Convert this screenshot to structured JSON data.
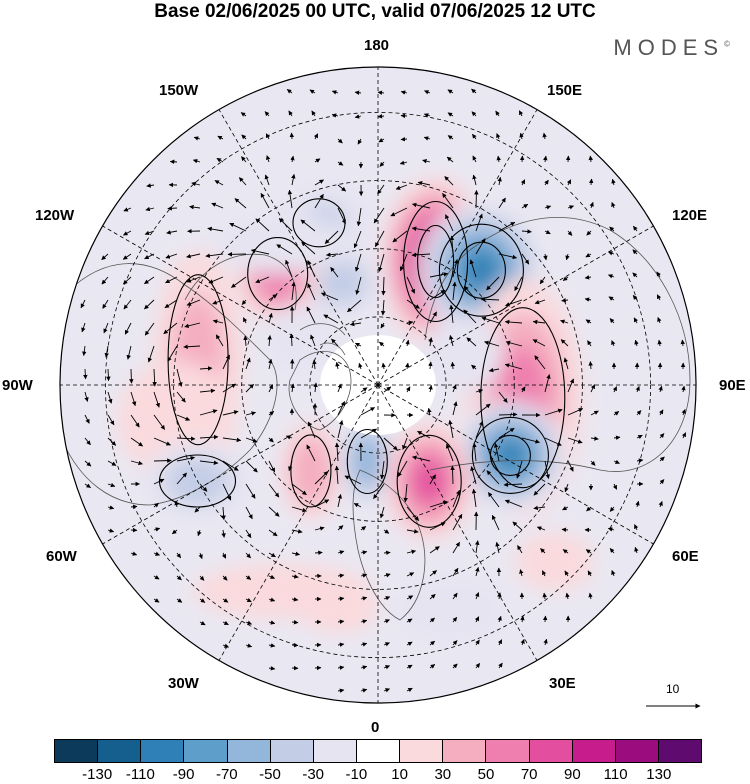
{
  "title": "Base 02/06/2025 00 UTC, valid 07/06/2025 12 UTC",
  "brand": {
    "name": "MODES",
    "mark": "©"
  },
  "longitude_labels": {
    "top": "180",
    "bottom": "0",
    "left": "90W",
    "right": "90E",
    "upper_left_1": "150W",
    "upper_left_2": "120W",
    "lower_left_1": "60W",
    "lower_left_2": "30W",
    "upper_right_1": "150E",
    "upper_right_2": "120E",
    "lower_right_1": "60E",
    "lower_right_2": "30E"
  },
  "reference_vector": {
    "label": "10"
  },
  "colorbar": {
    "colors": [
      "#0b3a5b",
      "#155f8f",
      "#2f80b6",
      "#5e9ecb",
      "#93b6db",
      "#c3cde6",
      "#e6e4f1",
      "#ffffff",
      "#fadadd",
      "#f4aec0",
      "#ef7fae",
      "#e34e9e",
      "#c71d8c",
      "#9b0c7e",
      "#5e0a6f"
    ],
    "ticks": [
      "-130",
      "-110",
      "-90",
      "-70",
      "-50",
      "-30",
      "-10",
      "10",
      "30",
      "50",
      "70",
      "90",
      "110",
      "130"
    ]
  },
  "anomalies": [
    {
      "lon": 155,
      "lat": 60,
      "value": 115,
      "rx": 55,
      "ry": 85
    },
    {
      "lon": 138,
      "lat": 56,
      "value": -100,
      "rx": 62,
      "ry": 68
    },
    {
      "lon": -160,
      "lat": 66,
      "value": -40,
      "rx": 45,
      "ry": 38
    },
    {
      "lon": -138,
      "lat": 57,
      "value": 68,
      "rx": 42,
      "ry": 48
    },
    {
      "lon": -162,
      "lat": 52,
      "value": -45,
      "rx": 50,
      "ry": 40
    },
    {
      "lon": -145,
      "lat": 52,
      "value": -25,
      "rx": 70,
      "ry": 30
    },
    {
      "lon": 85,
      "lat": 58,
      "value": 55,
      "rx": 60,
      "ry": 120
    },
    {
      "lon": 62,
      "lat": 57,
      "value": -95,
      "rx": 55,
      "ry": 55
    },
    {
      "lon": -98,
      "lat": 50,
      "value": 35,
      "rx": 45,
      "ry": 110
    },
    {
      "lon": -80,
      "lat": 45,
      "value": 20,
      "rx": 60,
      "ry": 60
    },
    {
      "lon": -38,
      "lat": 66,
      "value": 45,
      "rx": 30,
      "ry": 50
    },
    {
      "lon": -8,
      "lat": 73,
      "value": -70,
      "rx": 28,
      "ry": 45
    },
    {
      "lon": 28,
      "lat": 66,
      "value": 75,
      "rx": 45,
      "ry": 60
    },
    {
      "lon": -62,
      "lat": 45,
      "value": -35,
      "rx": 55,
      "ry": 40
    },
    {
      "lon": -25,
      "lat": 40,
      "value": 25,
      "rx": 90,
      "ry": 28
    },
    {
      "lon": 18,
      "lat": 38,
      "value": -28,
      "rx": 55,
      "ry": 35
    },
    {
      "lon": -10,
      "lat": 40,
      "value": 15,
      "rx": 40,
      "ry": 25
    },
    {
      "lon": 45,
      "lat": 35,
      "value": 20,
      "rx": 40,
      "ry": 30
    },
    {
      "lon": 110,
      "lat": 70,
      "value": -20,
      "rx": 40,
      "ry": 40
    },
    {
      "lon": -120,
      "lat": 70,
      "value": -20,
      "rx": 35,
      "ry": 35
    }
  ],
  "contours": [
    {
      "lon": 155,
      "lat": 60,
      "rx": 32,
      "ry": 60
    },
    {
      "lon": 155,
      "lat": 60,
      "rx": 18,
      "ry": 36
    },
    {
      "lon": 138,
      "lat": 56,
      "rx": 42,
      "ry": 46
    },
    {
      "lon": 138,
      "lat": 56,
      "rx": 24,
      "ry": 28
    },
    {
      "lon": -138,
      "lat": 57,
      "rx": 30,
      "ry": 36
    },
    {
      "lon": -160,
      "lat": 52,
      "rx": 26,
      "ry": 24
    },
    {
      "lon": 85,
      "lat": 58,
      "rx": 42,
      "ry": 90
    },
    {
      "lon": 62,
      "lat": 57,
      "rx": 38,
      "ry": 38
    },
    {
      "lon": 62,
      "lat": 57,
      "rx": 20,
      "ry": 20
    },
    {
      "lon": -98,
      "lat": 50,
      "rx": 30,
      "ry": 85
    },
    {
      "lon": -38,
      "lat": 66,
      "rx": 20,
      "ry": 36
    },
    {
      "lon": -8,
      "lat": 73,
      "rx": 20,
      "ry": 32
    },
    {
      "lon": 28,
      "lat": 66,
      "rx": 32,
      "ry": 46
    },
    {
      "lon": -62,
      "lat": 45,
      "rx": 38,
      "ry": 26
    }
  ]
}
